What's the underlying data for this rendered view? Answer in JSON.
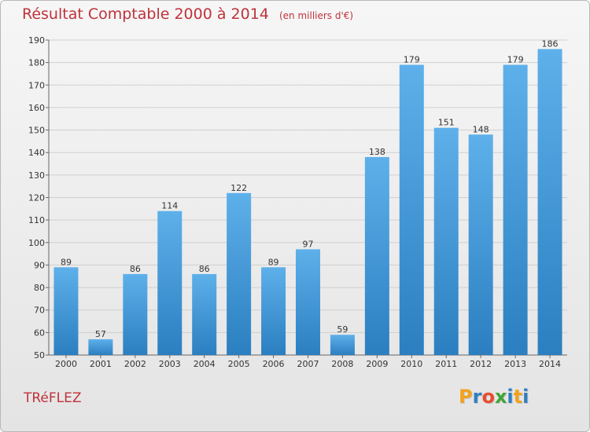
{
  "header": {
    "title": "Résultat Comptable 2000 à 2014",
    "subtitle": "(en milliers d'€)"
  },
  "footer": {
    "commune": "TRéFLEZ",
    "logo_letters": [
      "P",
      "r",
      "o",
      "x",
      "i",
      "t",
      "i"
    ],
    "logo_colors": [
      "#f3a21d",
      "#2f7fc0",
      "#e94b2f",
      "#3fa535",
      "#2f7fc0",
      "#f3a21d",
      "#2f7fc0"
    ]
  },
  "colors": {
    "bar_light": "#5eb0ea",
    "bar_dark": "#2b7fc0",
    "title": "#c0323b"
  },
  "chart_data": {
    "type": "bar",
    "title": "Résultat Comptable 2000 à 2014",
    "subtitle": "(en milliers d'€)",
    "categories": [
      "2000",
      "2001",
      "2002",
      "2003",
      "2004",
      "2005",
      "2006",
      "2007",
      "2008",
      "2009",
      "2010",
      "2011",
      "2012",
      "2013",
      "2014"
    ],
    "values": [
      89,
      57,
      86,
      114,
      86,
      122,
      89,
      97,
      59,
      138,
      179,
      151,
      148,
      179,
      186
    ],
    "ylim": [
      50,
      190
    ],
    "yticks": [
      50,
      60,
      70,
      80,
      90,
      100,
      110,
      120,
      130,
      140,
      150,
      160,
      170,
      180,
      190
    ],
    "grid": true,
    "legend": "none"
  }
}
